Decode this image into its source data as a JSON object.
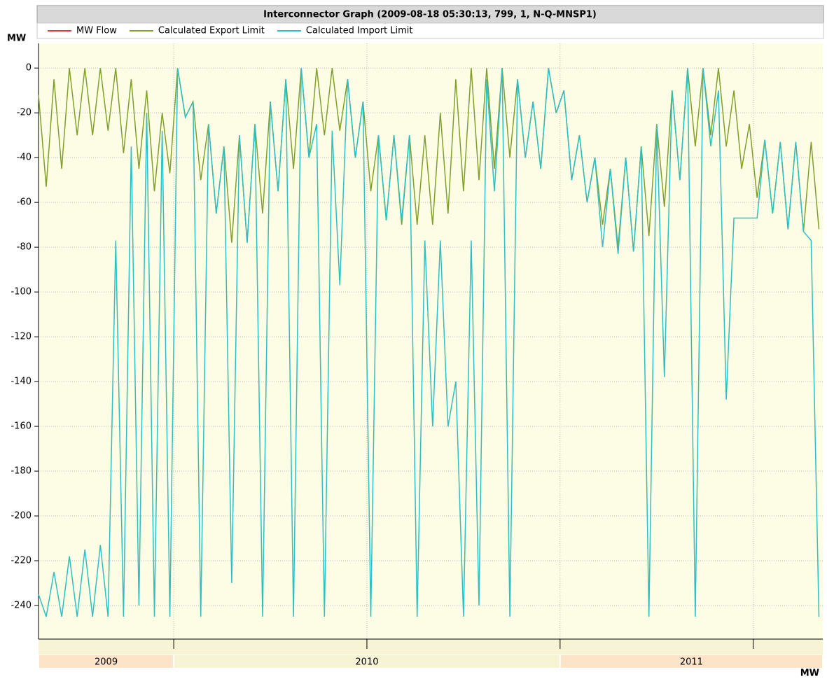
{
  "chart_data": {
    "type": "line",
    "title": "Interconnector Graph (2009-08-18 05:30:13, 799, 1, N-Q-MNSP1)",
    "y_label": "MW",
    "x_label": "MW",
    "xlim": [
      2009.65,
      2011.68
    ],
    "ylim": [
      -255,
      11
    ],
    "yticks": [
      0,
      -20,
      -40,
      -60,
      -80,
      -100,
      -120,
      -140,
      -160,
      -180,
      -200,
      -220,
      -240
    ],
    "x_grid": [
      2010,
      2010.5,
      2011,
      2011.5
    ],
    "grid": true,
    "year_bands": [
      {
        "label": "2009",
        "start": 2009.65,
        "end": 2010,
        "color": "#fde3c8"
      },
      {
        "label": "2010",
        "start": 2010,
        "end": 2011,
        "color": "#f7f4d6"
      },
      {
        "label": "2011",
        "start": 2011,
        "end": 2011.68,
        "color": "#fde3c8"
      }
    ],
    "x": [
      2009.65,
      2009.67,
      2009.69,
      2009.71,
      2009.73,
      2009.75,
      2009.77,
      2009.79,
      2009.81,
      2009.83,
      2009.85,
      2009.87,
      2009.89,
      2009.91,
      2009.93,
      2009.95,
      2009.97,
      2009.99,
      2010.01,
      2010.03,
      2010.05,
      2010.07,
      2010.09,
      2010.11,
      2010.13,
      2010.15,
      2010.17,
      2010.19,
      2010.21,
      2010.23,
      2010.25,
      2010.27,
      2010.29,
      2010.31,
      2010.33,
      2010.35,
      2010.37,
      2010.39,
      2010.41,
      2010.43,
      2010.45,
      2010.47,
      2010.49,
      2010.51,
      2010.53,
      2010.55,
      2010.57,
      2010.59,
      2010.61,
      2010.63,
      2010.65,
      2010.67,
      2010.69,
      2010.71,
      2010.73,
      2010.75,
      2010.77,
      2010.79,
      2010.81,
      2010.83,
      2010.85,
      2010.87,
      2010.89,
      2010.91,
      2010.93,
      2010.95,
      2010.97,
      2010.99,
      2011.01,
      2011.03,
      2011.05,
      2011.07,
      2011.09,
      2011.11,
      2011.13,
      2011.15,
      2011.17,
      2011.19,
      2011.21,
      2011.23,
      2011.25,
      2011.27,
      2011.29,
      2011.31,
      2011.33,
      2011.35,
      2011.37,
      2011.39,
      2011.41,
      2011.43,
      2011.45,
      2011.47,
      2011.49,
      2011.51,
      2011.53,
      2011.55,
      2011.57,
      2011.59,
      2011.61,
      2011.63,
      2011.65,
      2011.67
    ],
    "series": [
      {
        "name": "MW Flow",
        "color": "#e03a3a",
        "values": [
          null,
          null,
          null,
          null,
          null,
          null,
          null,
          null,
          null,
          null,
          null,
          null,
          null,
          null,
          null,
          null,
          null,
          null,
          null,
          null,
          null,
          null,
          null,
          null,
          null,
          null,
          null,
          null,
          null,
          null,
          null,
          null,
          null,
          null,
          null,
          null,
          null,
          null,
          null,
          null,
          null,
          null,
          null,
          null,
          null,
          null,
          null,
          null,
          null,
          null,
          null,
          null,
          null,
          null,
          null,
          null,
          null,
          null,
          null,
          null,
          null,
          null,
          null,
          null,
          null,
          null,
          null,
          null,
          null,
          null,
          null,
          null,
          null,
          null,
          null,
          null,
          null,
          null,
          null,
          null,
          null,
          null,
          null,
          null,
          null,
          null,
          null,
          null,
          null,
          null,
          null,
          null,
          null,
          null,
          null,
          null,
          null,
          null,
          null,
          null,
          null,
          null
        ]
      },
      {
        "name": "Calculated Export Limit",
        "color": "#80a02a",
        "values": [
          -12,
          -53,
          -5,
          -45,
          0,
          -30,
          0,
          -30,
          0,
          -28,
          0,
          -38,
          -5,
          -45,
          -10,
          -55,
          -20,
          -47,
          0,
          -22,
          -15,
          -50,
          -25,
          -65,
          -35,
          -78,
          -30,
          -78,
          -25,
          -65,
          -15,
          -55,
          -5,
          -45,
          0,
          -40,
          0,
          -30,
          0,
          -28,
          -5,
          -40,
          -15,
          -55,
          -30,
          -68,
          -30,
          -70,
          -30,
          -70,
          -30,
          -70,
          -20,
          -65,
          -5,
          -55,
          0,
          -50,
          0,
          -45,
          0,
          -40,
          -5,
          -40,
          -15,
          -45,
          0,
          -20,
          -10,
          -50,
          -30,
          -60,
          -40,
          -70,
          -45,
          -80,
          -40,
          -82,
          -35,
          -75,
          -25,
          -62,
          -10,
          -50,
          0,
          -35,
          0,
          -30,
          0,
          -35,
          -10,
          -45,
          -25,
          -58,
          -32,
          -65,
          -33,
          -72,
          -33,
          -73,
          -33,
          -72
        ]
      },
      {
        "name": "Calculated Import Limit",
        "color": "#2cc0c4",
        "values": [
          -235,
          -245,
          -225,
          -245,
          -218,
          -245,
          -215,
          -245,
          -213,
          -245,
          -77,
          -245,
          -35,
          -240,
          -20,
          -245,
          -28,
          -245,
          0,
          -22,
          -15,
          -245,
          -25,
          -65,
          -35,
          -230,
          -30,
          -78,
          -25,
          -245,
          -15,
          -55,
          -5,
          -245,
          0,
          -40,
          -25,
          -245,
          -28,
          -97,
          -5,
          -40,
          -15,
          -245,
          -30,
          -68,
          -30,
          -68,
          -30,
          -245,
          -77,
          -160,
          -77,
          -160,
          -140,
          -245,
          -77,
          -240,
          -5,
          -55,
          0,
          -245,
          -5,
          -40,
          -15,
          -45,
          0,
          -20,
          -10,
          -50,
          -30,
          -60,
          -40,
          -80,
          -45,
          -83,
          -40,
          -82,
          -35,
          -245,
          -25,
          -138,
          -10,
          -50,
          0,
          -245,
          0,
          -35,
          -10,
          -148,
          -67,
          -67,
          -67,
          -67,
          -32,
          -65,
          -33,
          -72,
          -33,
          -73,
          -77,
          -245
        ]
      }
    ]
  }
}
